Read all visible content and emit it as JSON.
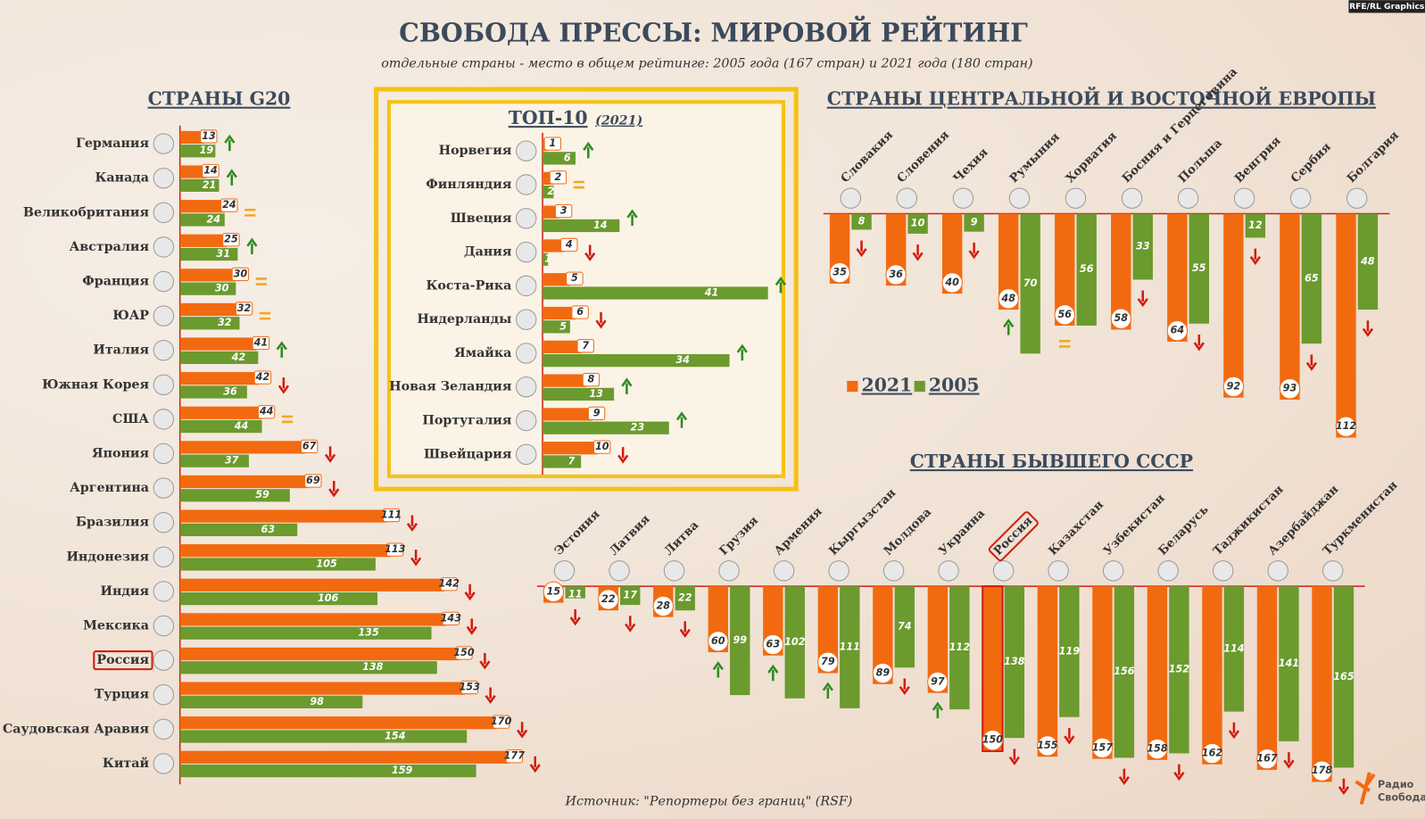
{
  "title": "СВОБОДА ПРЕССЫ: МИРОВОЙ РЕЙТИНГ",
  "subtitle": "отдельные страны - место в общем рейтинге: 2005 года (167 стран) и 2021 года (180 стран)",
  "credit": "RFE/RL Graphics",
  "source": "Источник: \"Репортеры без границ\" (RSF)",
  "logo": [
    "Радио",
    "Свобода"
  ],
  "chart_data": [
    {
      "type": "bar",
      "orientation": "horizontal",
      "title": "СТРАНЫ G20",
      "highlight": "Россия",
      "categories": [
        "Германия",
        "Канада",
        "Великобритания",
        "Австралия",
        "Франция",
        "ЮАР",
        "Италия",
        "Южная Корея",
        "США",
        "Япония",
        "Аргентина",
        "Бразилия",
        "Индонезия",
        "Индия",
        "Мексика",
        "Россия",
        "Турция",
        "Саудовская Аравия",
        "Китай"
      ],
      "series": [
        {
          "color": "#f26a10",
          "values": [
            13,
            14,
            24,
            25,
            30,
            32,
            41,
            42,
            44,
            67,
            69,
            111,
            113,
            142,
            143,
            150,
            153,
            170,
            177
          ]
        },
        {
          "color": "#6b9a2e",
          "values": [
            19,
            21,
            24,
            31,
            30,
            32,
            42,
            36,
            44,
            37,
            59,
            63,
            105,
            106,
            135,
            138,
            98,
            154,
            159
          ]
        }
      ]
    },
    {
      "type": "bar",
      "orientation": "horizontal",
      "title": "ТОП-10",
      "subtitle": "(2021)",
      "categories": [
        "Норвегия",
        "Финляндия",
        "Швеция",
        "Дания",
        "Коста-Рика",
        "Нидерланды",
        "Ямайка",
        "Новая Зеландия",
        "Португалия",
        "Швейцария"
      ],
      "series": [
        {
          "color": "#f26a10",
          "values": [
            1,
            2,
            3,
            4,
            5,
            6,
            7,
            8,
            9,
            10
          ]
        },
        {
          "color": "#6b9a2e",
          "values": [
            6,
            2,
            14,
            1,
            41,
            5,
            34,
            13,
            23,
            7
          ]
        }
      ]
    },
    {
      "type": "bar",
      "orientation": "vertical",
      "title": "СТРАНЫ ЦЕНТРАЛЬНОЙ И ВОСТОЧНОЙ ЕВРОПЫ",
      "categories": [
        "Словакия",
        "Словения",
        "Чехия",
        "Румыния",
        "Хорватия",
        "Босния и Герцеговина",
        "Польша",
        "Венгрия",
        "Сербия",
        "Болгария"
      ],
      "series": [
        {
          "name": "2021",
          "color": "#f26a10",
          "values": [
            35,
            36,
            40,
            48,
            56,
            58,
            64,
            92,
            93,
            112
          ]
        },
        {
          "name": "2005",
          "color": "#6b9a2e",
          "values": [
            8,
            10,
            9,
            70,
            56,
            33,
            55,
            12,
            65,
            48
          ]
        }
      ]
    },
    {
      "type": "bar",
      "orientation": "vertical",
      "title": "СТРАНЫ БЫВШЕГО СССР",
      "highlight": "Россия",
      "categories": [
        "Эстония",
        "Латвия",
        "Литва",
        "Грузия",
        "Армения",
        "Кыргызстан",
        "Молдова",
        "Украина",
        "Россия",
        "Казахстан",
        "Узбекистан",
        "Беларусь",
        "Таджикистан",
        "Азербайджан",
        "Туркменистан"
      ],
      "series": [
        {
          "color": "#f26a10",
          "values": [
            15,
            22,
            28,
            60,
            63,
            79,
            89,
            97,
            150,
            155,
            157,
            158,
            162,
            167,
            178
          ]
        },
        {
          "color": "#6b9a2e",
          "values": [
            11,
            17,
            22,
            99,
            102,
            111,
            74,
            112,
            138,
            119,
            156,
            152,
            114,
            141,
            165
          ]
        }
      ]
    }
  ]
}
